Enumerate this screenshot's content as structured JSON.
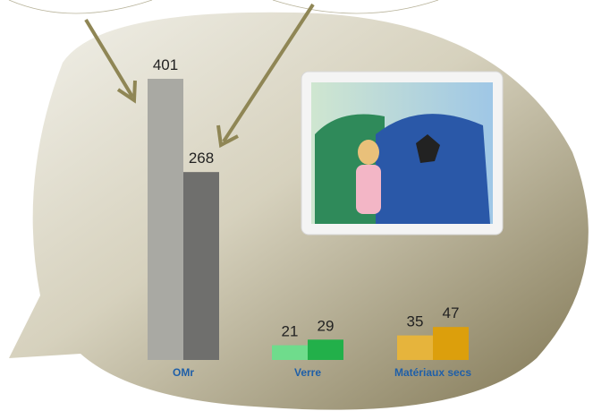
{
  "chart_data": {
    "type": "bar",
    "categories": [
      "OMr",
      "Verre",
      "Matériaux secs"
    ],
    "series": [
      {
        "values": [
          401,
          21,
          35
        ],
        "colors": [
          "#a9a9a3",
          "#6fdc8c",
          "#e6b43c"
        ]
      },
      {
        "values": [
          268,
          29,
          47
        ],
        "colors": [
          "#6f6f6d",
          "#22b04a",
          "#dc9f0c"
        ]
      }
    ]
  }
}
